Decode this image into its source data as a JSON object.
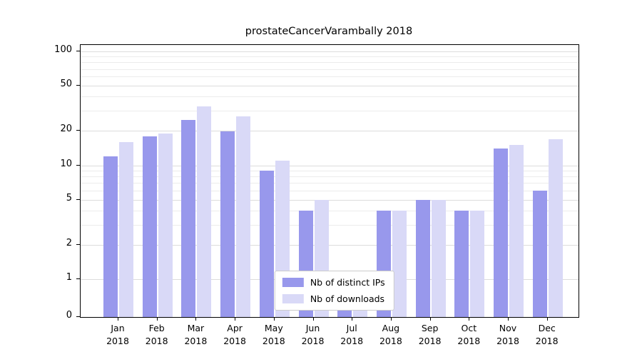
{
  "chart_data": {
    "type": "bar",
    "title": "prostateCancerVarambally 2018",
    "categories": [
      "Jan 2018",
      "Feb 2018",
      "Mar 2018",
      "Apr 2018",
      "May 2018",
      "Jun 2018",
      "Jul 2018",
      "Aug 2018",
      "Sep 2018",
      "Oct 2018",
      "Nov 2018",
      "Dec 2018"
    ],
    "x_tick_labels": [
      [
        "Jan",
        "2018"
      ],
      [
        "Feb",
        "2018"
      ],
      [
        "Mar",
        "2018"
      ],
      [
        "Apr",
        "2018"
      ],
      [
        "May",
        "2018"
      ],
      [
        "Jun",
        "2018"
      ],
      [
        "Jul",
        "2018"
      ],
      [
        "Aug",
        "2018"
      ],
      [
        "Sep",
        "2018"
      ],
      [
        "Oct",
        "2018"
      ],
      [
        "Nov",
        "2018"
      ],
      [
        "Dec",
        "2018"
      ]
    ],
    "series": [
      {
        "name": "Nb of distinct IPs",
        "color": "#9898ec",
        "values": [
          12,
          18,
          25,
          20,
          9,
          4,
          1,
          4,
          5,
          4,
          14,
          6
        ]
      },
      {
        "name": "Nb of downloads",
        "color": "#d9d9f7",
        "values": [
          16,
          19,
          33,
          27,
          11,
          5,
          1,
          4,
          5,
          4,
          15,
          17
        ]
      }
    ],
    "y_axis": {
      "scale": "symlog",
      "ticks": [
        0,
        1,
        2,
        5,
        10,
        20,
        50,
        100
      ],
      "minor_ticks": [
        3,
        4,
        6,
        7,
        8,
        9,
        30,
        40,
        60,
        70,
        80,
        90
      ],
      "range": [
        0,
        100
      ]
    },
    "legend": {
      "position": "lower center",
      "items": [
        "Nb of distinct IPs",
        "Nb of downloads"
      ]
    },
    "grid": true,
    "gridline_color": "#dcdcdc",
    "axis_color": "#000000",
    "background": "#ffffff"
  }
}
